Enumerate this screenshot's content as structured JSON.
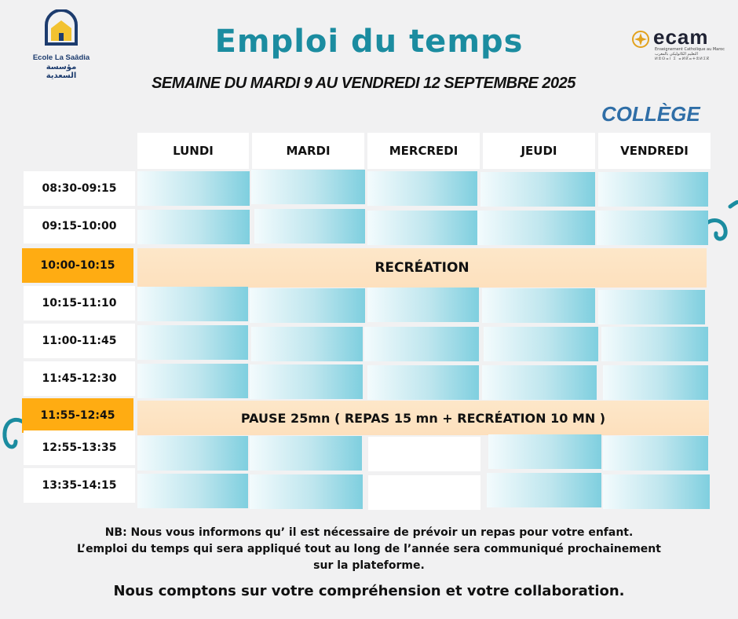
{
  "header": {
    "school_name": "Ecole La Saâdia",
    "school_name_ar": "مؤسسة السعدية",
    "title": "Emploi du temps",
    "subtitle": "SEMAINE DU  MARDI  9 AU  VENDREDI 12  SEPTEMBRE 2025",
    "level": "COLLÈGE",
    "partner_brand": "ecam",
    "partner_tagline": "Enseignement Catholique au Maroc التعليم الكاثوليكي بالمغرب",
    "partner_tagline2": "ⵍⵓⵙⴰⵏ ⵉ ⴰⵍⴽⴰⵜⵓⵍⵉⴽ"
  },
  "colors": {
    "title": "#1b8ca0",
    "level": "#2f6ea7",
    "highlight_time": "#ffac12",
    "band": "#fde0bd",
    "slot_gradient_end": "#7fcfdf"
  },
  "timetable": {
    "days": [
      "LUNDI",
      "MARDI",
      "MERCREDI",
      "JEUDI",
      "VENDREDI"
    ],
    "times": [
      "08:30-09:15",
      "09:15-10:00",
      "10:00-10:15",
      "10:15-11:10",
      "11:00-11:45",
      "11:45-12:30",
      "11:55-12:45",
      "12:55-13:35",
      "13:35-14:15"
    ],
    "break_label": "RECRÉATION",
    "lunch_label": "PAUSE  25mn ( REPAS 15 mn + RECRÉATION 10 MN )"
  },
  "notes": {
    "line1": "NB:  Nous vous informons qu’ il est nécessaire de prévoir un repas pour votre enfant.",
    "line2": "L’emploi du temps qui sera appliqué tout au long de l’année sera communiqué prochainement",
    "line3": "sur la plateforme.",
    "closing": "Nous comptons sur votre compréhension et votre collaboration."
  }
}
